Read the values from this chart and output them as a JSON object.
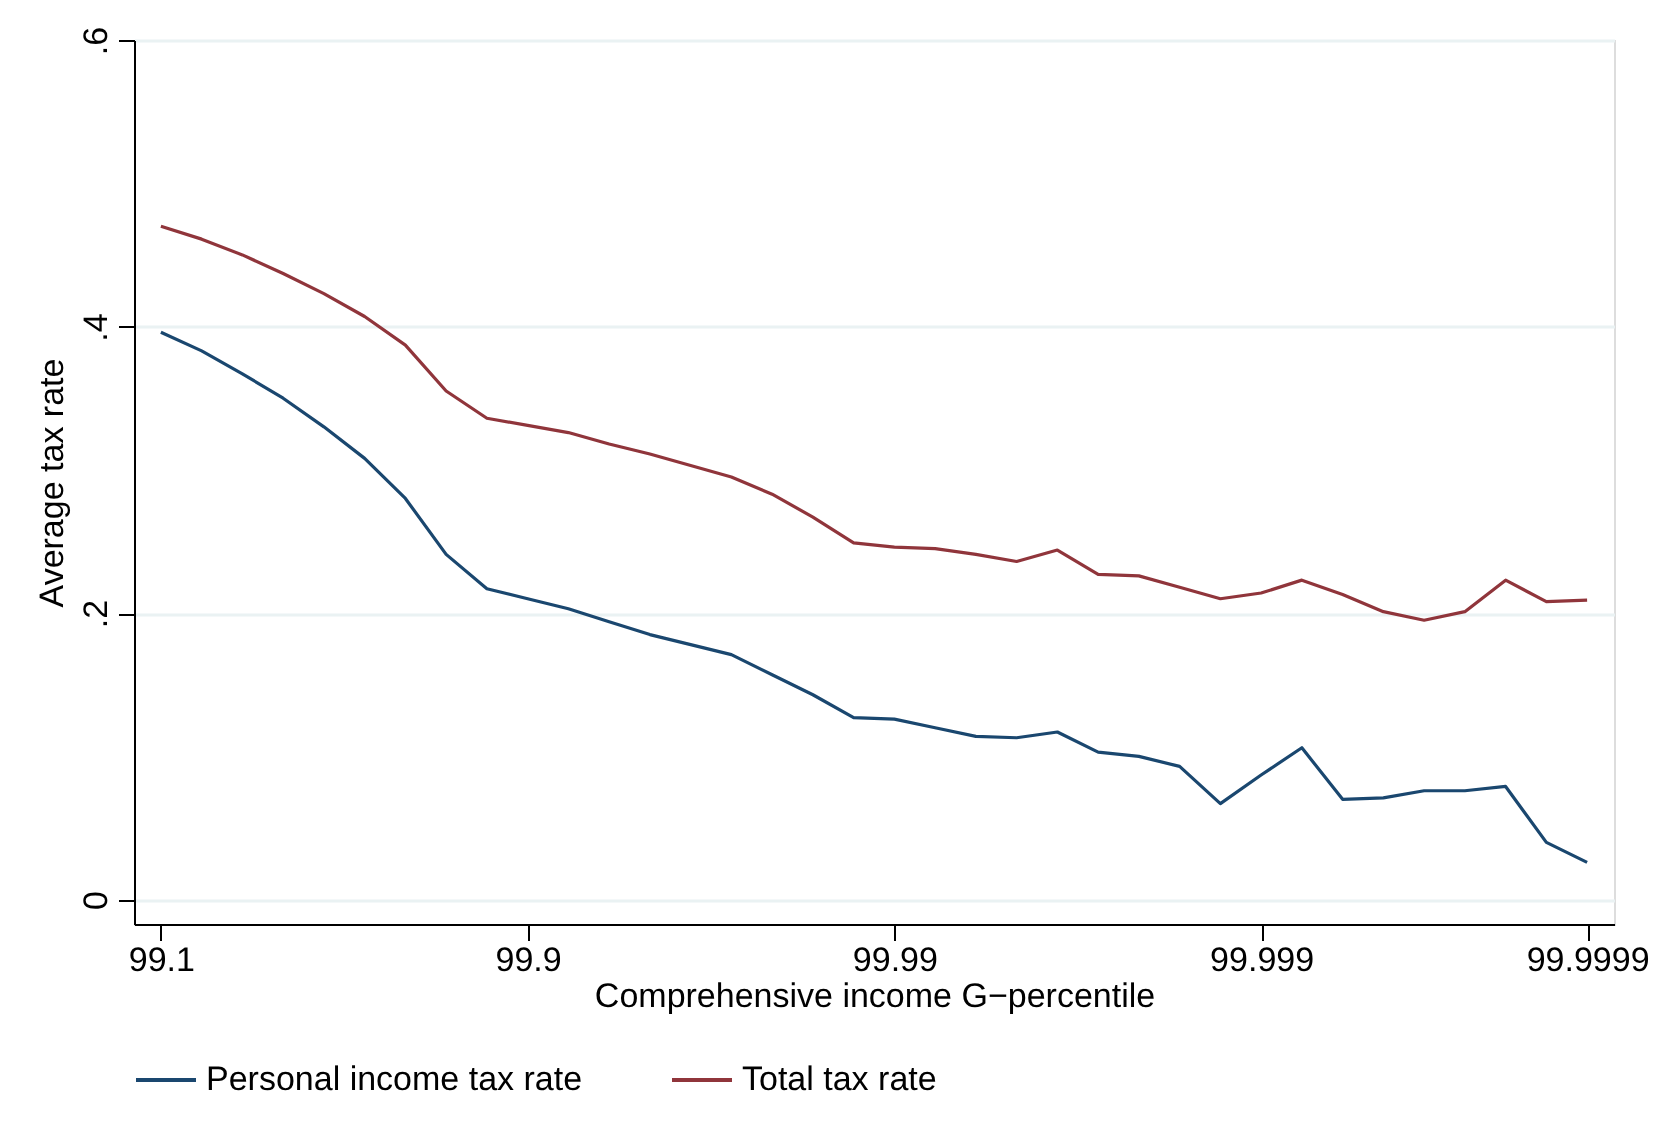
{
  "chart_data": {
    "type": "line",
    "xlabel": "Comprehensive income G−percentile",
    "ylabel": "Average tax rate",
    "categories": [
      "99.1",
      null,
      null,
      null,
      null,
      null,
      null,
      null,
      null,
      "99.9",
      null,
      null,
      null,
      null,
      null,
      null,
      null,
      null,
      "99.99",
      null,
      null,
      null,
      null,
      null,
      null,
      null,
      null,
      "99.999",
      null,
      null,
      null,
      null,
      null,
      null,
      null,
      "99.9999"
    ],
    "series": [
      {
        "name": "Personal income tax rate",
        "color": "#1a476f",
        "values": [
          0.396,
          0.383,
          0.367,
          0.35,
          0.33,
          0.308,
          0.28,
          0.241,
          0.217,
          0.21,
          0.203,
          0.194,
          0.185,
          0.178,
          0.171,
          0.157,
          0.143,
          0.127,
          0.126,
          0.12,
          0.114,
          0.113,
          0.117,
          0.103,
          0.1,
          0.093,
          0.067,
          0.087,
          0.106,
          0.07,
          0.071,
          0.076,
          0.076,
          0.079,
          0.04,
          0.026
        ]
      },
      {
        "name": "Total tax rate",
        "color": "#90353b",
        "values": [
          0.47,
          0.461,
          0.45,
          0.437,
          0.423,
          0.407,
          0.387,
          0.355,
          0.336,
          0.331,
          0.326,
          0.318,
          0.311,
          0.303,
          0.295,
          0.283,
          0.267,
          0.249,
          0.246,
          0.245,
          0.241,
          0.236,
          0.244,
          0.227,
          0.226,
          0.218,
          0.21,
          0.214,
          0.223,
          0.213,
          0.201,
          0.195,
          0.201,
          0.223,
          0.208,
          0.209
        ]
      }
    ],
    "ylim": [
      -0.017,
      0.6
    ],
    "yticks": [
      0,
      {
        "value": 0.2,
        "label": ".2"
      },
      {
        "value": 0.4,
        "label": ".4"
      },
      {
        "value": 0.6,
        "label": ".6"
      }
    ],
    "grid": "y",
    "legend": "bottom",
    "marker": "none",
    "line_style": "solid"
  }
}
